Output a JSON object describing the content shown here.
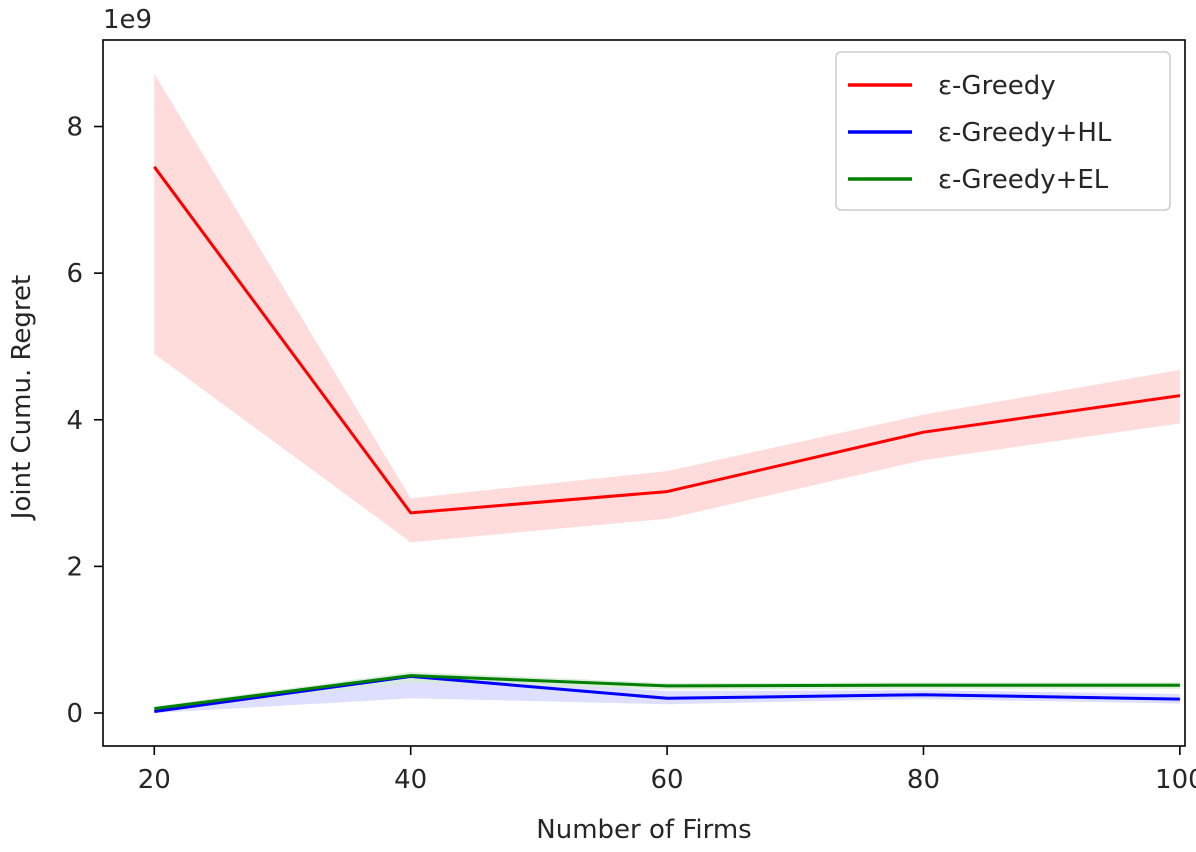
{
  "chart_data": {
    "type": "line",
    "xlabel": "Number of Firms",
    "ylabel": "Joint Cumu. Regret",
    "y_offset_label": "1e9",
    "x": [
      20,
      40,
      60,
      80,
      100
    ],
    "xticks": [
      20,
      40,
      60,
      80,
      100
    ],
    "xtick_labels": [
      "20",
      "40",
      "60",
      "80",
      "100"
    ],
    "yticks": [
      0,
      2,
      4,
      6,
      8
    ],
    "ytick_labels": [
      "0",
      "2",
      "4",
      "6",
      "8"
    ],
    "xlim": [
      16,
      100.4
    ],
    "ylim": [
      -0.45,
      9.18
    ],
    "grid": false,
    "legend_position": "top-right",
    "series": [
      {
        "name": "ε-Greedy",
        "color": "#ff0000",
        "band_color": "#ffd6d6",
        "values": [
          7.45,
          2.73,
          3.02,
          3.83,
          4.33
        ],
        "lower": [
          4.9,
          2.33,
          2.65,
          3.45,
          3.95
        ],
        "upper": [
          8.72,
          2.93,
          3.3,
          4.07,
          4.68
        ]
      },
      {
        "name": "ε-Greedy+HL",
        "color": "#0000ff",
        "band_color": "#d8d8ff",
        "values": [
          0.02,
          0.5,
          0.2,
          0.25,
          0.19
        ],
        "lower": [
          0.0,
          0.2,
          0.12,
          0.19,
          0.13
        ],
        "upper": [
          0.05,
          0.52,
          0.3,
          0.31,
          0.26
        ]
      },
      {
        "name": "ε-Greedy+EL",
        "color": "#008000",
        "band_color": "#d6ead6",
        "values": [
          0.06,
          0.51,
          0.37,
          0.38,
          0.38
        ],
        "lower": [
          0.04,
          0.42,
          0.32,
          0.33,
          0.33
        ],
        "upper": [
          0.09,
          0.56,
          0.41,
          0.42,
          0.42
        ]
      }
    ]
  }
}
